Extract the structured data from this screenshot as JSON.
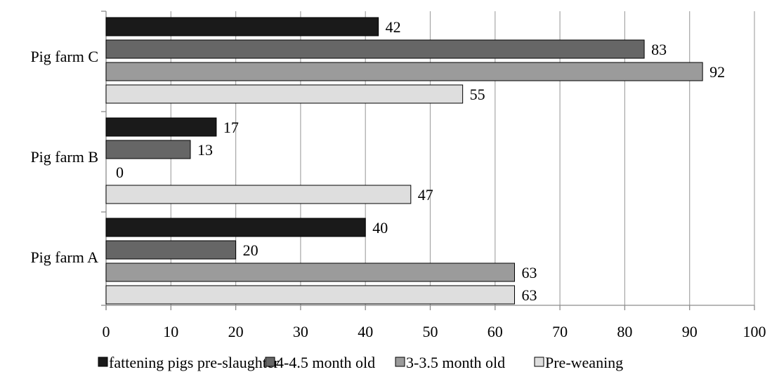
{
  "chart_data": {
    "type": "bar",
    "orientation": "horizontal",
    "categories": [
      "Pig farm C",
      "Pig farm B",
      "Pig farm A"
    ],
    "series": [
      {
        "name": "fattening pigs pre-slaughter",
        "values": [
          42,
          17,
          40
        ],
        "color": "#1a1a1a"
      },
      {
        "name": "4-4.5 month old",
        "values": [
          83,
          13,
          20
        ],
        "color": "#666666"
      },
      {
        "name": "3-3.5 month old",
        "values": [
          92,
          0,
          63
        ],
        "color": "#9b9b9b"
      },
      {
        "name": "Pre-weaning",
        "values": [
          55,
          47,
          63
        ],
        "color": "#dedede"
      }
    ],
    "xlim": [
      0,
      100
    ],
    "xticks": [
      "0",
      "10",
      "20",
      "30",
      "40",
      "50",
      "60",
      "70",
      "80",
      "90",
      "100"
    ],
    "grid": "vertical",
    "legend": "bottom"
  }
}
